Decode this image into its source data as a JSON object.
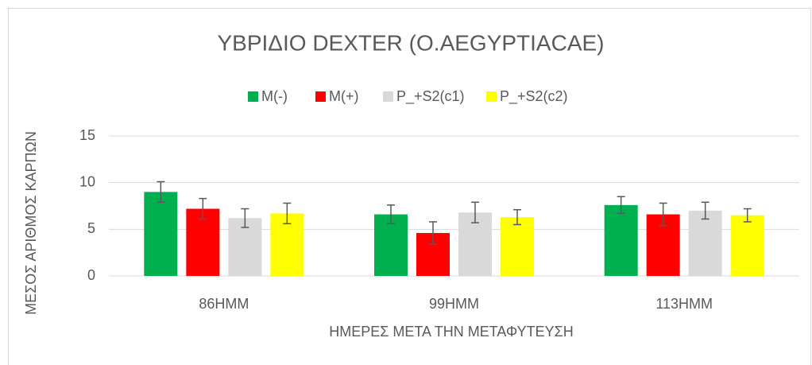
{
  "chart_data": {
    "type": "bar",
    "title": "ΥΒΡΙΔΙΟ DEXTER (O.AEGYPTIACAE)",
    "x_label": "ΗΜΕΡΕΣ ΜΕΤΑ ΤΗΝ ΜΕΤΑΦΥΤΕΥΣΗ",
    "y_label": "ΜΕΣΟΣ ΑΡΙΘΜΟΣ ΚΑΡΠΩΝ",
    "categories": [
      "86ΗΜΜ",
      "99ΗΜΜ",
      "113ΗΜΜ"
    ],
    "series": [
      {
        "name": "M(-)",
        "color": "#00b050",
        "values": [
          9.0,
          6.6,
          7.6
        ],
        "errors": [
          1.1,
          1.0,
          0.9
        ]
      },
      {
        "name": "M(+)",
        "color": "#ff0000",
        "values": [
          7.2,
          4.6,
          6.6
        ],
        "errors": [
          1.1,
          1.2,
          1.2
        ]
      },
      {
        "name": "P_+S2(c1)",
        "color": "#d9d9d9",
        "values": [
          6.2,
          6.8,
          7.0
        ],
        "errors": [
          1.0,
          1.1,
          0.9
        ]
      },
      {
        "name": "P_+S2(c2)",
        "color": "#ffff00",
        "values": [
          6.7,
          6.3,
          6.5
        ],
        "errors": [
          1.1,
          0.8,
          0.7
        ]
      }
    ],
    "ylim": [
      0,
      15
    ],
    "yticks": [
      0,
      5,
      10,
      15
    ],
    "grid": true,
    "legend": "top"
  }
}
